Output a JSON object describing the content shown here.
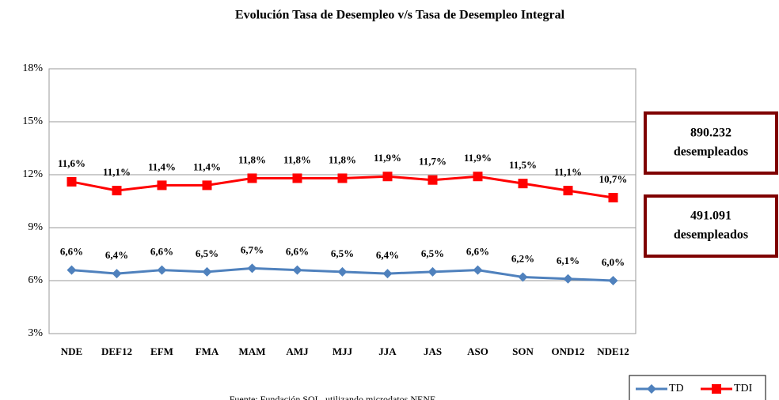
{
  "chart_data": {
    "type": "line",
    "title": "Evolución Tasa de Desempleo v/s Tasa de Desempleo Integral",
    "categories": [
      "NDE",
      "DEF12",
      "EFM",
      "FMA",
      "MAM",
      "AMJ",
      "MJJ",
      "JJA",
      "JAS",
      "ASO",
      "SON",
      "OND12",
      "NDE12"
    ],
    "series": [
      {
        "name": "TD",
        "color": "#4f81bd",
        "marker": "diamond",
        "values": [
          6.6,
          6.4,
          6.6,
          6.5,
          6.7,
          6.6,
          6.5,
          6.4,
          6.5,
          6.6,
          6.2,
          6.1,
          6.0
        ],
        "value_labels": [
          "6,6%",
          "6,4%",
          "6,6%",
          "6,5%",
          "6,7%",
          "6,6%",
          "6,5%",
          "6,4%",
          "6,5%",
          "6,6%",
          "6,2%",
          "6,1%",
          "6,0%"
        ]
      },
      {
        "name": "TDI",
        "color": "#ff0000",
        "marker": "square",
        "values": [
          11.6,
          11.1,
          11.4,
          11.4,
          11.8,
          11.8,
          11.8,
          11.9,
          11.7,
          11.9,
          11.5,
          11.1,
          10.7
        ],
        "value_labels": [
          "11,6%",
          "11,1%",
          "11,4%",
          "11,4%",
          "11,8%",
          "11,8%",
          "11,8%",
          "11,9%",
          "11,7%",
          "11,9%",
          "11,5%",
          "11,1%",
          "10,7%"
        ]
      }
    ],
    "ylim": [
      3,
      18
    ],
    "yticks": [
      {
        "value": 3,
        "label": "3%"
      },
      {
        "value": 6,
        "label": "6%"
      },
      {
        "value": 9,
        "label": "9%"
      },
      {
        "value": 12,
        "label": "12%"
      },
      {
        "value": 15,
        "label": "15%"
      },
      {
        "value": 18,
        "label": "18%"
      }
    ],
    "grid": true,
    "legend": "bottom-right",
    "annotations": [
      [
        "890.232",
        "desempleados"
      ],
      [
        "491.091",
        "desempleados"
      ]
    ],
    "source": "Fuente: Fundación SOL, utilizando microdatos NENE"
  }
}
